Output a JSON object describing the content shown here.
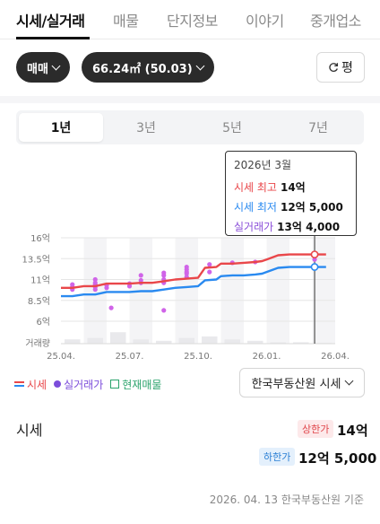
{
  "tabs": [
    {
      "label": "시세/실거래",
      "active": true
    },
    {
      "label": "매물",
      "active": false
    },
    {
      "label": "단지정보",
      "active": false
    },
    {
      "label": "이야기",
      "active": false
    },
    {
      "label": "중개업소",
      "active": false
    }
  ],
  "filters": {
    "trade_type": "매매",
    "area": "66.24㎡ (50.03)",
    "unit_button": "평"
  },
  "periods": [
    {
      "label": "1년",
      "active": true
    },
    {
      "label": "3년",
      "active": false
    },
    {
      "label": "5년",
      "active": false
    },
    {
      "label": "7년",
      "active": false
    }
  ],
  "tooltip": {
    "date": "2026년 3월",
    "high_label": "시세 최고",
    "high_value": "14억",
    "low_label": "시세 최저",
    "low_value": "12억 5,000",
    "deal_label": "실거래가",
    "deal_value": "13억 4,000"
  },
  "legend": {
    "price": "시세",
    "deals": "실거래가",
    "listings": "현재매물"
  },
  "source_select": "한국부동산원 시세",
  "summary": {
    "label": "시세",
    "upper_badge": "상한가",
    "upper_value": "14억",
    "lower_badge": "하한가",
    "lower_value": "12억 5,000"
  },
  "footer": "2026. 04. 13 한국부동산원 기준",
  "colors": {
    "upper_line": "#e9474a",
    "lower_line": "#2a8af0",
    "deal_dot": "#d064e8",
    "deal_dot_dark": "#b44ee0",
    "legend_deal": "#7c4ddb",
    "listing": "#2aa36b"
  },
  "chart_data": {
    "type": "line",
    "y_ticks": [
      "16억",
      "13.5억",
      "11억",
      "8.5억",
      "6억"
    ],
    "y_tick_values": [
      16,
      13.5,
      11,
      8.5,
      6
    ],
    "ylim": [
      6,
      16
    ],
    "y_unit": "억",
    "volume_label": "거래량",
    "x_ticks": [
      "25.04.",
      "25.07.",
      "25.10.",
      "26.01.",
      "26.04."
    ],
    "x_tick_values": [
      0,
      3,
      6,
      9,
      12
    ],
    "xlim": [
      0,
      12
    ],
    "series": [
      {
        "name": "시세 최고",
        "points": [
          [
            0,
            10.0
          ],
          [
            0.5,
            10.0
          ],
          [
            1,
            10.2
          ],
          [
            1.5,
            10.2
          ],
          [
            2,
            10.5
          ],
          [
            2.5,
            10.5
          ],
          [
            3,
            10.5
          ],
          [
            3.5,
            10.6
          ],
          [
            4,
            10.6
          ],
          [
            4.5,
            10.8
          ],
          [
            5,
            11.0
          ],
          [
            5.5,
            11.1
          ],
          [
            6,
            11.2
          ],
          [
            6.3,
            12.4
          ],
          [
            6.8,
            12.5
          ],
          [
            7,
            12.9
          ],
          [
            7.5,
            12.9
          ],
          [
            8,
            13.0
          ],
          [
            8.5,
            13.1
          ],
          [
            8.8,
            13.2
          ],
          [
            9,
            13.4
          ],
          [
            9.5,
            13.9
          ],
          [
            10,
            14.0
          ],
          [
            11,
            14.0
          ],
          [
            11.6,
            14.0
          ]
        ]
      },
      {
        "name": "시세 최저",
        "points": [
          [
            0,
            9.0
          ],
          [
            0.5,
            9.0
          ],
          [
            1,
            9.2
          ],
          [
            1.5,
            9.2
          ],
          [
            2,
            9.5
          ],
          [
            2.5,
            9.5
          ],
          [
            3,
            9.5
          ],
          [
            3.5,
            9.6
          ],
          [
            4,
            9.6
          ],
          [
            4.5,
            9.8
          ],
          [
            5,
            10.0
          ],
          [
            5.5,
            10.1
          ],
          [
            6,
            10.2
          ],
          [
            6.3,
            10.9
          ],
          [
            6.8,
            11.0
          ],
          [
            7,
            11.4
          ],
          [
            7.5,
            11.5
          ],
          [
            8,
            11.5
          ],
          [
            8.5,
            11.6
          ],
          [
            8.8,
            11.7
          ],
          [
            9,
            11.9
          ],
          [
            9.5,
            12.4
          ],
          [
            10,
            12.5
          ],
          [
            11,
            12.5
          ],
          [
            11.6,
            12.5
          ]
        ]
      }
    ],
    "deals": [
      [
        0.5,
        10.1
      ],
      [
        0.5,
        9.8
      ],
      [
        0.5,
        10.4
      ],
      [
        1.5,
        10.4
      ],
      [
        1.5,
        10.1
      ],
      [
        1.5,
        9.8
      ],
      [
        1.5,
        11.0
      ],
      [
        1.5,
        10.6
      ],
      [
        2.0,
        10.3
      ],
      [
        2.0,
        10.0
      ],
      [
        2.2,
        7.6
      ],
      [
        3.0,
        10.5
      ],
      [
        3.0,
        10.2
      ],
      [
        3.5,
        10.6
      ],
      [
        3.5,
        11.5
      ],
      [
        3.5,
        10.9
      ],
      [
        4.5,
        11.8
      ],
      [
        4.5,
        11.0
      ],
      [
        4.5,
        11.5
      ],
      [
        4.5,
        10.6
      ],
      [
        4.5,
        7.3
      ],
      [
        5.5,
        12.2
      ],
      [
        5.5,
        11.7
      ],
      [
        5.5,
        11.3
      ],
      [
        5.5,
        11.9
      ],
      [
        5.5,
        12.5
      ],
      [
        6.5,
        12.8
      ],
      [
        6.5,
        11.9
      ],
      [
        7.5,
        13.0
      ],
      [
        8.5,
        13.1
      ],
      [
        11.1,
        13.4
      ]
    ],
    "highlight_x": 11.1,
    "volume": [
      0.3,
      0.4,
      0.8,
      0.3,
      0.2,
      0.4,
      0.5,
      0.3,
      0.2,
      0.1,
      0.1,
      0.05
    ]
  }
}
